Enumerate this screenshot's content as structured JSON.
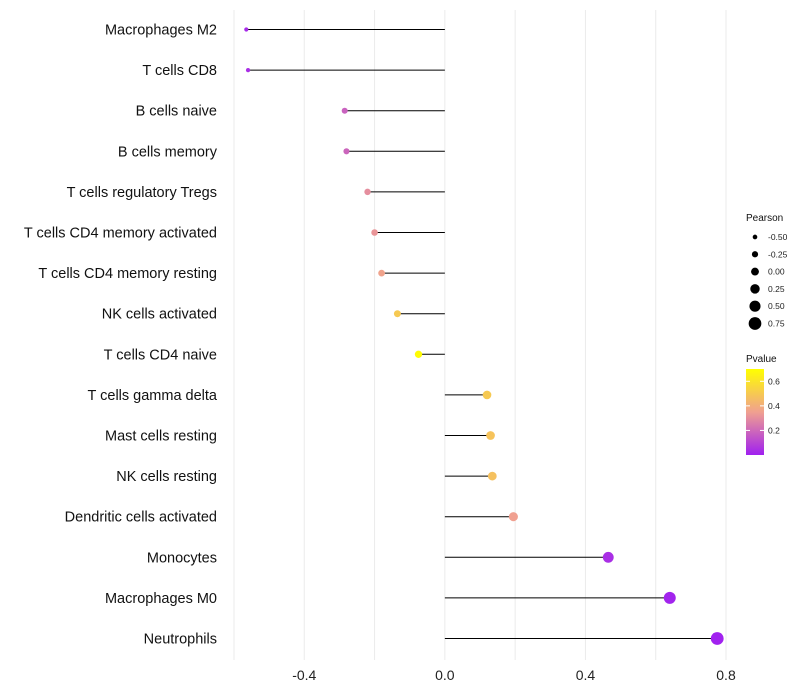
{
  "chart_data": {
    "type": "lollipop",
    "xlim": [
      -0.6,
      0.8
    ],
    "x_ticks": [
      -0.4,
      0.0,
      0.4,
      0.8
    ],
    "x_tick_labels": [
      "-0.4",
      "0.0",
      "0.4",
      "0.8"
    ],
    "gridlines": "vertical",
    "categories": [
      "Macrophages M2",
      "T cells CD8",
      "B cells naive",
      "B cells memory",
      "T cells regulatory  Tregs",
      "T cells CD4 memory activated",
      "T cells CD4 memory resting",
      "NK cells activated",
      "T cells CD4 naive",
      "T cells gamma delta",
      "Mast cells resting",
      "NK cells resting",
      "Dendritic cells activated",
      "Monocytes",
      "Macrophages M0",
      "Neutrophils"
    ],
    "pearson": [
      -0.565,
      -0.56,
      -0.285,
      -0.28,
      -0.22,
      -0.2,
      -0.18,
      -0.135,
      -0.075,
      0.12,
      0.13,
      0.135,
      0.195,
      0.465,
      0.64,
      0.775
    ],
    "pvalue": [
      0.03,
      0.04,
      0.18,
      0.19,
      0.3,
      0.32,
      0.36,
      0.5,
      0.69,
      0.5,
      0.48,
      0.47,
      0.35,
      0.04,
      0.01,
      0.005
    ],
    "size_legend": {
      "title": "Pearson",
      "breaks": [
        -0.5,
        -0.25,
        0.0,
        0.25,
        0.5,
        0.75
      ],
      "labels": [
        "-0.50",
        "-0.25",
        "0.00",
        "0.25",
        "0.50",
        "0.75"
      ]
    },
    "color_legend": {
      "title": "Pvalue",
      "range": [
        0.0,
        0.7
      ],
      "ticks": [
        0.2,
        0.4,
        0.6
      ],
      "labels": [
        "0.2",
        "0.4",
        "0.6"
      ],
      "low_color": "#a020f0",
      "mid_color": "#f0a090",
      "high_color": "#ffff00"
    }
  },
  "colors": {
    "background": "#ffffff",
    "grid": "#ebebeb",
    "segment": "#000000"
  }
}
